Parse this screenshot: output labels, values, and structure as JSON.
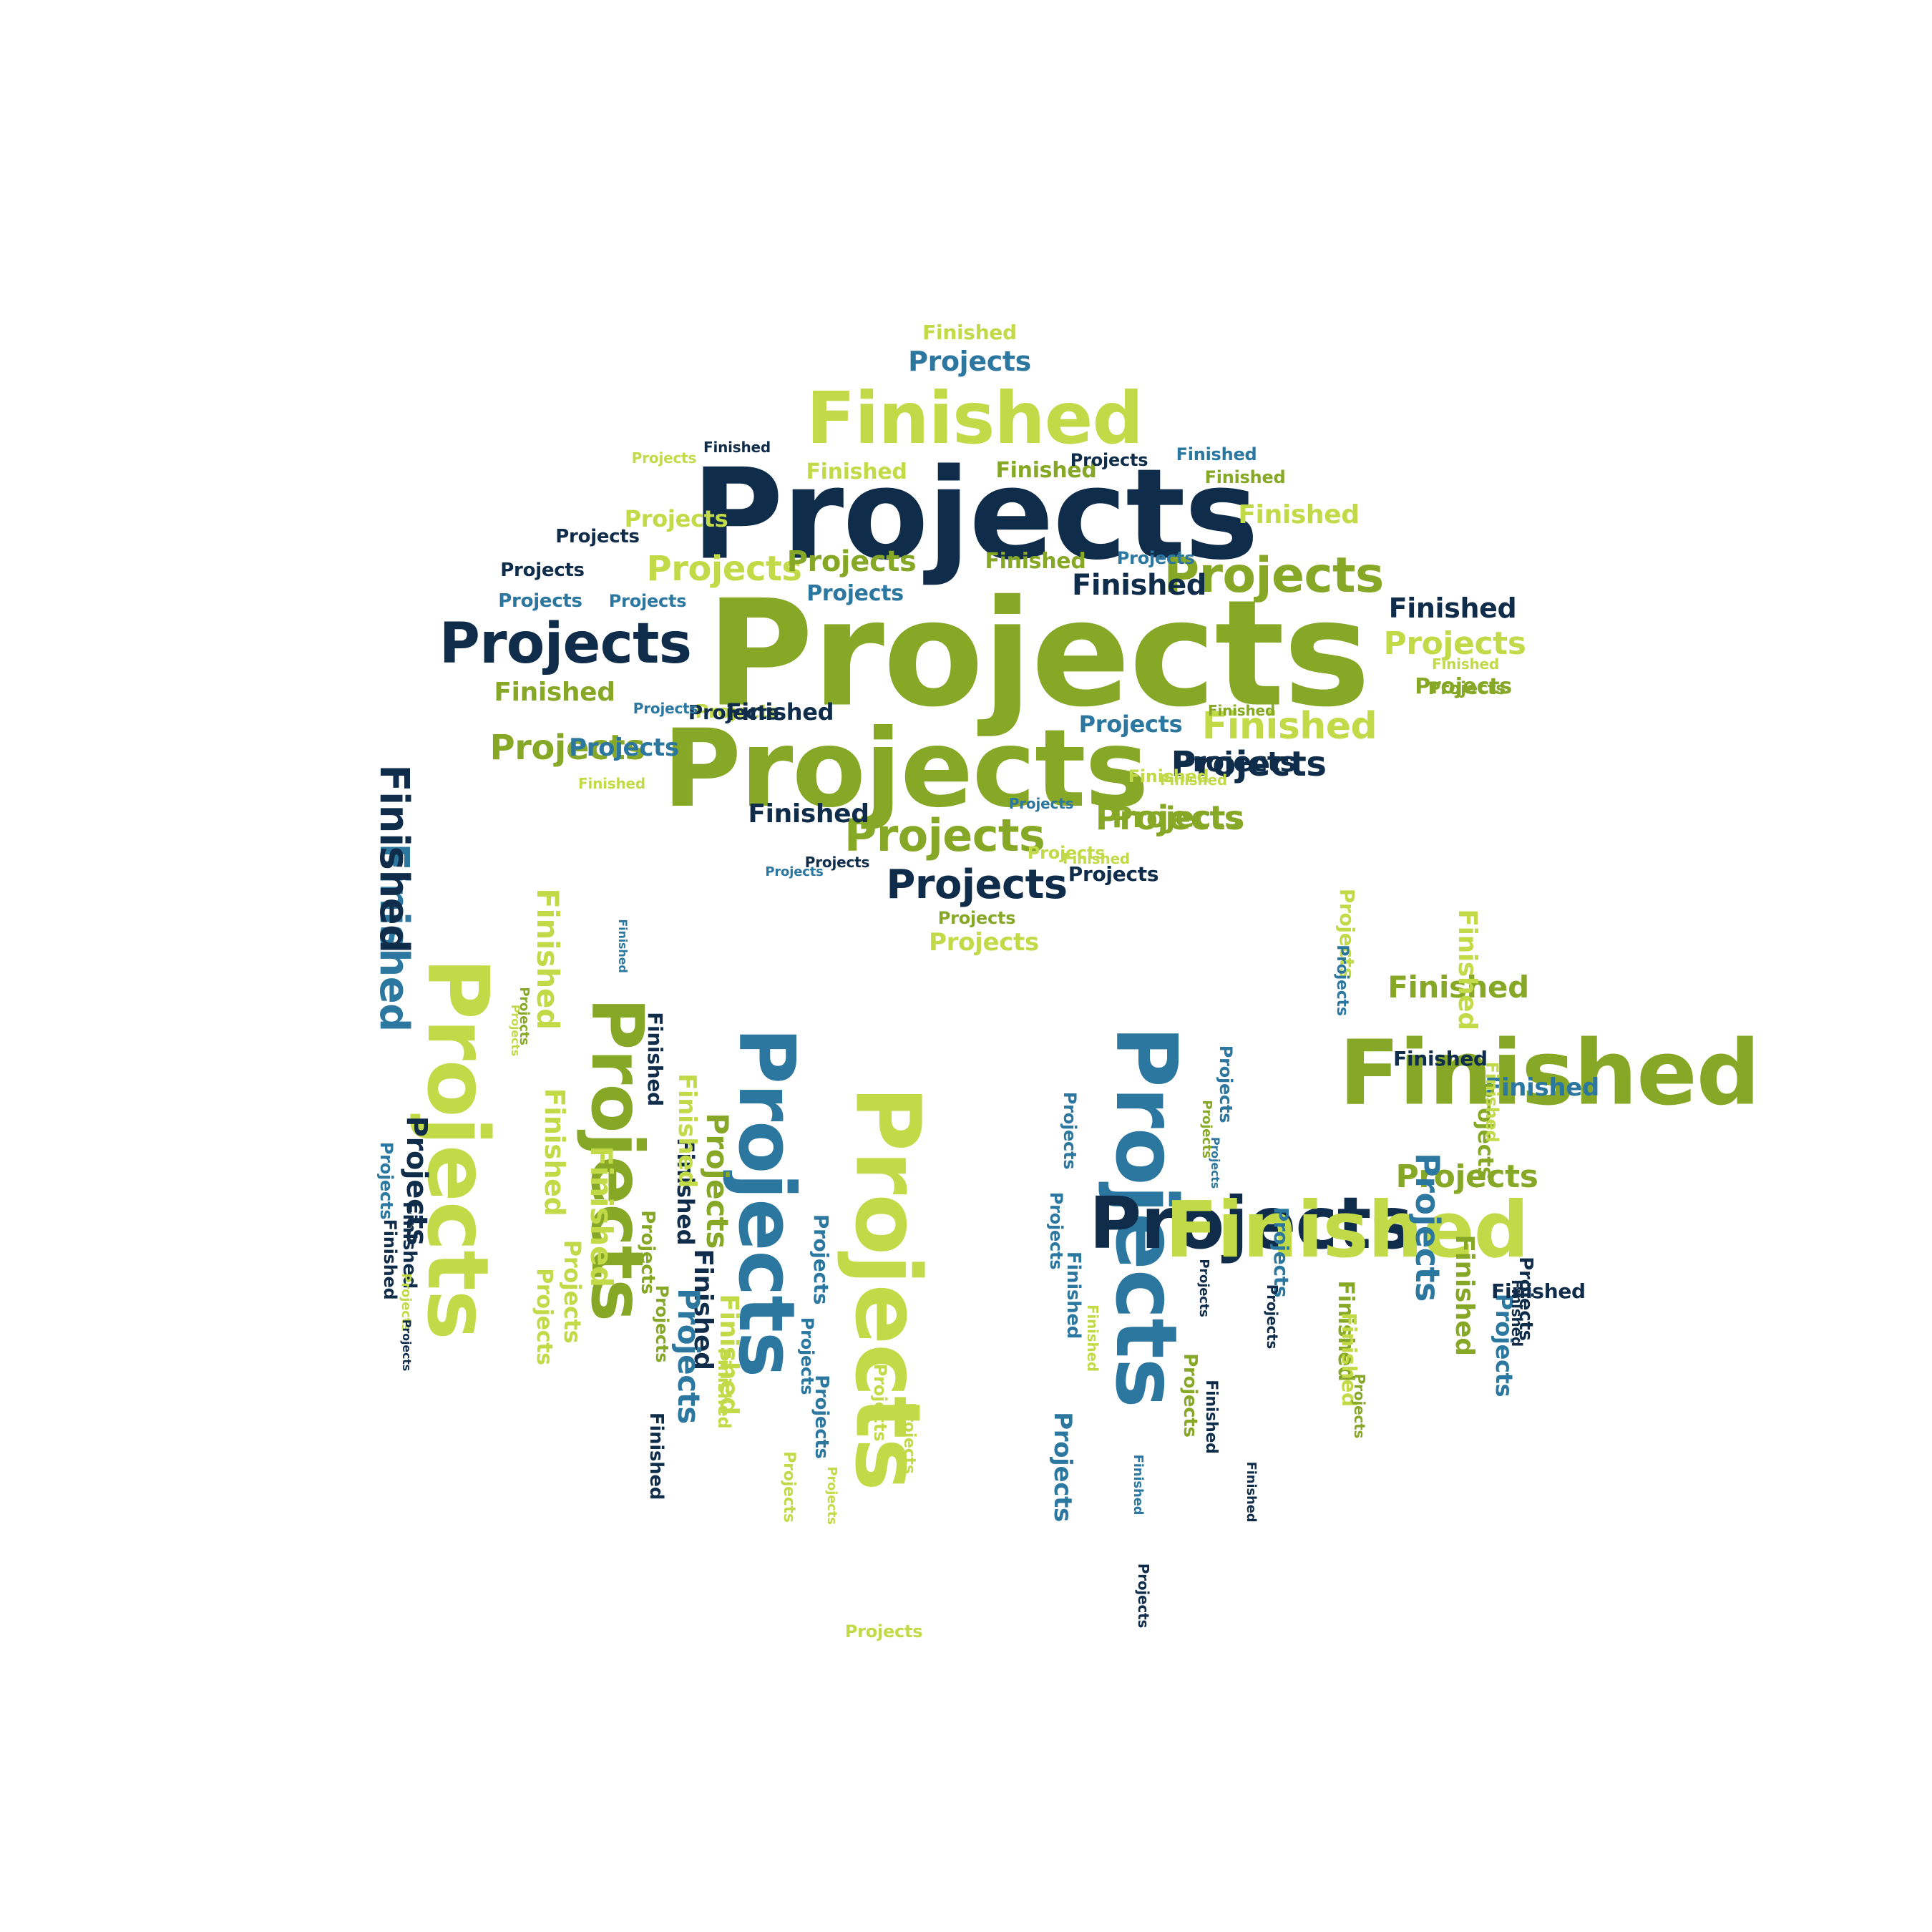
{
  "colors": {
    "navy": "#0f2d4a",
    "olive": "#86a826",
    "lime": "#c2da47",
    "teal": "#2b77a0",
    "background": "#ffffff"
  },
  "words": [
    {
      "text": "Projects",
      "color": "navy",
      "rotation": "horizontal"
    },
    {
      "text": "Projects",
      "color": "olive",
      "rotation": "horizontal"
    },
    {
      "text": "Projects",
      "color": "olive",
      "rotation": "horizontal"
    },
    {
      "text": "Finished",
      "color": "lime",
      "rotation": "horizontal"
    },
    {
      "text": "Projects",
      "color": "navy",
      "rotation": "horizontal"
    },
    {
      "text": "Projects",
      "color": "olive",
      "rotation": "horizontal"
    },
    {
      "text": "Projects",
      "color": "olive",
      "rotation": "horizontal"
    },
    {
      "text": "Finished",
      "color": "lime",
      "rotation": "horizontal"
    },
    {
      "text": "Projects",
      "color": "navy",
      "rotation": "horizontal"
    },
    {
      "text": "Projects",
      "color": "olive",
      "rotation": "horizontal"
    },
    {
      "text": "Projects",
      "color": "teal",
      "rotation": "horizontal"
    },
    {
      "text": "Finished",
      "color": "lime",
      "rotation": "horizontal"
    },
    {
      "text": "Projects",
      "color": "lime",
      "rotation": "horizontal"
    },
    {
      "text": "Finished",
      "color": "navy",
      "rotation": "horizontal"
    },
    {
      "text": "Projects",
      "color": "olive",
      "rotation": "horizontal"
    },
    {
      "text": "Projects",
      "color": "lime",
      "rotation": "horizontal"
    },
    {
      "text": "Projects",
      "color": "lime",
      "rotation": "horizontal"
    },
    {
      "text": "Finished",
      "color": "lime",
      "rotation": "horizontal"
    },
    {
      "text": "Finished",
      "color": "olive",
      "rotation": "horizontal"
    },
    {
      "text": "Finished",
      "color": "navy",
      "rotation": "horizontal"
    },
    {
      "text": "Projects",
      "color": "teal",
      "rotation": "horizontal"
    },
    {
      "text": "Finished",
      "color": "olive",
      "rotation": "horizontal"
    },
    {
      "text": "Projects",
      "color": "teal",
      "rotation": "horizontal"
    },
    {
      "text": "Projects",
      "color": "olive",
      "rotation": "horizontal"
    },
    {
      "text": "Finished",
      "color": "lime",
      "rotation": "horizontal"
    },
    {
      "text": "Finished",
      "color": "teal",
      "rotation": "horizontal"
    },
    {
      "text": "Finished",
      "color": "olive",
      "rotation": "horizontal"
    },
    {
      "text": "Projects",
      "color": "navy",
      "rotation": "horizontal"
    },
    {
      "text": "Projects",
      "color": "navy",
      "rotation": "horizontal"
    },
    {
      "text": "Projects",
      "color": "navy",
      "rotation": "horizontal"
    },
    {
      "text": "Projects",
      "color": "lime",
      "rotation": "horizontal"
    },
    {
      "text": "Projects",
      "color": "teal",
      "rotation": "horizontal"
    },
    {
      "text": "Projects",
      "color": "teal",
      "rotation": "horizontal"
    },
    {
      "text": "Projects",
      "color": "lime",
      "rotation": "horizontal"
    },
    {
      "text": "Finished",
      "color": "navy",
      "rotation": "horizontal"
    },
    {
      "text": "Projects",
      "color": "navy",
      "rotation": "horizontal"
    },
    {
      "text": "Projects",
      "color": "teal",
      "rotation": "horizontal"
    },
    {
      "text": "Projects",
      "color": "olive",
      "rotation": "horizontal"
    },
    {
      "text": "Projects",
      "color": "navy",
      "rotation": "horizontal"
    },
    {
      "text": "Projects",
      "color": "navy",
      "rotation": "horizontal"
    },
    {
      "text": "Projects",
      "color": "lime",
      "rotation": "horizontal"
    },
    {
      "text": "Finished",
      "color": "olive",
      "rotation": "horizontal"
    },
    {
      "text": "Projects",
      "color": "olive",
      "rotation": "horizontal"
    },
    {
      "text": "Finished",
      "color": "lime",
      "rotation": "horizontal"
    },
    {
      "text": "Projects",
      "color": "olive",
      "rotation": "horizontal"
    },
    {
      "text": "Projects",
      "color": "navy",
      "rotation": "horizontal"
    },
    {
      "text": "Projects",
      "color": "teal",
      "rotation": "horizontal"
    },
    {
      "text": "Finished",
      "color": "navy",
      "rotation": "horizontal"
    },
    {
      "text": "Projects",
      "color": "teal",
      "rotation": "horizontal"
    },
    {
      "text": "Projects",
      "color": "teal",
      "rotation": "horizontal"
    },
    {
      "text": "Finished",
      "color": "lime",
      "rotation": "horizontal"
    },
    {
      "text": "Finished",
      "color": "lime",
      "rotation": "horizontal"
    },
    {
      "text": "Finished",
      "color": "navy",
      "rotation": "horizontal"
    },
    {
      "text": "Projects",
      "color": "navy",
      "rotation": "horizontal"
    },
    {
      "text": "Finished",
      "color": "lime",
      "rotation": "horizontal"
    },
    {
      "text": "Projects",
      "color": "olive",
      "rotation": "horizontal"
    },
    {
      "text": "Projects",
      "color": "lime",
      "rotation": "horizontal"
    },
    {
      "text": "Projects",
      "color": "teal",
      "rotation": "horizontal"
    },
    {
      "text": "Finished",
      "color": "olive",
      "rotation": "horizontal"
    },
    {
      "text": "Finished",
      "color": "lime",
      "rotation": "horizontal"
    },
    {
      "text": "Finished",
      "color": "teal",
      "rotation": "vertical"
    },
    {
      "text": "Finished",
      "color": "navy",
      "rotation": "vertical"
    },
    {
      "text": "Finished",
      "color": "navy",
      "rotation": "vertical"
    },
    {
      "text": "Finished",
      "color": "lime",
      "rotation": "vertical"
    },
    {
      "text": "Finished",
      "color": "navy",
      "rotation": "vertical"
    },
    {
      "text": "Projects",
      "color": "lime",
      "rotation": "vertical"
    },
    {
      "text": "Projects",
      "color": "olive",
      "rotation": "vertical"
    },
    {
      "text": "Projects",
      "color": "teal",
      "rotation": "vertical"
    },
    {
      "text": "Projects",
      "color": "lime",
      "rotation": "vertical"
    },
    {
      "text": "Projects",
      "color": "olive",
      "rotation": "vertical"
    },
    {
      "text": "Finished",
      "color": "lime",
      "rotation": "vertical"
    },
    {
      "text": "Finished",
      "color": "lime",
      "rotation": "vertical"
    },
    {
      "text": "Finished",
      "color": "lime",
      "rotation": "vertical"
    },
    {
      "text": "Projects",
      "color": "teal",
      "rotation": "vertical"
    },
    {
      "text": "Finished",
      "color": "navy",
      "rotation": "vertical"
    },
    {
      "text": "Projects",
      "color": "navy",
      "rotation": "vertical"
    },
    {
      "text": "Finished",
      "color": "navy",
      "rotation": "vertical"
    },
    {
      "text": "Finished",
      "color": "teal",
      "rotation": "vertical"
    },
    {
      "text": "Projects",
      "color": "olive",
      "rotation": "vertical"
    },
    {
      "text": "Projects",
      "color": "lime",
      "rotation": "vertical"
    },
    {
      "text": "Finished",
      "color": "lime",
      "rotation": "vertical"
    },
    {
      "text": "Projects",
      "color": "lime",
      "rotation": "vertical"
    },
    {
      "text": "Projects",
      "color": "lime",
      "rotation": "vertical"
    },
    {
      "text": "Projects",
      "color": "olive",
      "rotation": "vertical"
    },
    {
      "text": "Projects",
      "color": "olive",
      "rotation": "vertical"
    },
    {
      "text": "Finished",
      "color": "navy",
      "rotation": "vertical"
    },
    {
      "text": "Projects",
      "color": "teal",
      "rotation": "vertical"
    },
    {
      "text": "Finished",
      "color": "lime",
      "rotation": "vertical"
    },
    {
      "text": "Projects",
      "color": "teal",
      "rotation": "vertical"
    },
    {
      "text": "Projects",
      "color": "teal",
      "rotation": "vertical"
    },
    {
      "text": "Projects",
      "color": "lime",
      "rotation": "vertical"
    },
    {
      "text": "Projects",
      "color": "lime",
      "rotation": "vertical"
    },
    {
      "text": "Projects",
      "color": "teal",
      "rotation": "vertical"
    },
    {
      "text": "Projects",
      "color": "lime",
      "rotation": "vertical"
    },
    {
      "text": "Projects",
      "color": "lime",
      "rotation": "vertical"
    },
    {
      "text": "Projects",
      "color": "lime",
      "rotation": "vertical"
    },
    {
      "text": "Finished",
      "color": "navy",
      "rotation": "vertical"
    },
    {
      "text": "Projects",
      "color": "navy",
      "rotation": "vertical"
    },
    {
      "text": "Projects",
      "color": "lime",
      "rotation": "horizontal"
    },
    {
      "text": "Projects",
      "color": "teal",
      "rotation": "vertical"
    },
    {
      "text": "Projects",
      "color": "navy",
      "rotation": "horizontal"
    },
    {
      "text": "Finished",
      "color": "lime",
      "rotation": "horizontal"
    },
    {
      "text": "Finished",
      "color": "olive",
      "rotation": "horizontal"
    },
    {
      "text": "Projects",
      "color": "olive",
      "rotation": "horizontal"
    },
    {
      "text": "Finished",
      "color": "teal",
      "rotation": "horizontal"
    },
    {
      "text": "Finished",
      "color": "olive",
      "rotation": "horizontal"
    },
    {
      "text": "Finished",
      "color": "navy",
      "rotation": "horizontal"
    },
    {
      "text": "Projects",
      "color": "teal",
      "rotation": "vertical"
    },
    {
      "text": "Projects",
      "color": "olive",
      "rotation": "vertical"
    },
    {
      "text": "Projects",
      "color": "teal",
      "rotation": "vertical"
    },
    {
      "text": "Projects",
      "color": "teal",
      "rotation": "vertical"
    },
    {
      "text": "Finished",
      "color": "olive",
      "rotation": "vertical"
    },
    {
      "text": "Projects",
      "color": "teal",
      "rotation": "vertical"
    },
    {
      "text": "Projects",
      "color": "teal",
      "rotation": "vertical"
    },
    {
      "text": "Projects",
      "color": "teal",
      "rotation": "vertical"
    },
    {
      "text": "Projects",
      "color": "olive",
      "rotation": "vertical"
    },
    {
      "text": "Projects",
      "color": "teal",
      "rotation": "vertical"
    },
    {
      "text": "Projects",
      "color": "lime",
      "rotation": "vertical"
    },
    {
      "text": "Projects",
      "color": "teal",
      "rotation": "vertical"
    },
    {
      "text": "Finished",
      "color": "lime",
      "rotation": "vertical"
    },
    {
      "text": "Finished",
      "color": "olive",
      "rotation": "vertical"
    },
    {
      "text": "Finished",
      "color": "lime",
      "rotation": "vertical"
    },
    {
      "text": "Finished",
      "color": "lime",
      "rotation": "vertical"
    },
    {
      "text": "Projects",
      "color": "olive",
      "rotation": "vertical"
    },
    {
      "text": "Projects",
      "color": "teal",
      "rotation": "vertical"
    },
    {
      "text": "Projects",
      "color": "navy",
      "rotation": "vertical"
    },
    {
      "text": "Finished",
      "color": "navy",
      "rotation": "vertical"
    },
    {
      "text": "Projects",
      "color": "navy",
      "rotation": "vertical"
    },
    {
      "text": "Finished",
      "color": "navy",
      "rotation": "vertical"
    },
    {
      "text": "Finished",
      "color": "teal",
      "rotation": "vertical"
    },
    {
      "text": "Finished",
      "color": "teal",
      "rotation": "vertical"
    },
    {
      "text": "Finished",
      "color": "lime",
      "rotation": "vertical"
    },
    {
      "text": "Projects",
      "color": "olive",
      "rotation": "vertical"
    },
    {
      "text": "Finished",
      "color": "navy",
      "rotation": "vertical"
    },
    {
      "text": "Projects",
      "color": "navy",
      "rotation": "vertical"
    },
    {
      "text": "Projects",
      "color": "navy",
      "rotation": "vertical"
    },
    {
      "text": "Finished",
      "color": "navy",
      "rotation": "horizontal"
    },
    {
      "text": "Projects",
      "color": "navy",
      "rotation": "vertical"
    }
  ]
}
